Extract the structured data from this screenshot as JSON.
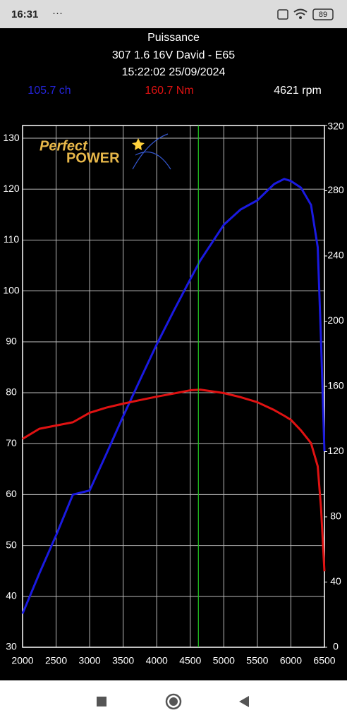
{
  "status_bar": {
    "time": "16:31",
    "dots": "···",
    "battery": "89"
  },
  "chart_data": {
    "type": "line",
    "title": "Puissance",
    "subtitle": "307 1.6 16V David - E65",
    "timestamp": "15:22:02 25/09/2024",
    "readouts": [
      "105.7 ch",
      "160.7 Nm",
      "4621 rpm"
    ],
    "logo": [
      "Perfect",
      "POWER"
    ],
    "x": [
      2000,
      2250,
      2500,
      2750,
      3000,
      3250,
      3500,
      3750,
      4000,
      4250,
      4500,
      4650,
      5000,
      5250,
      5500,
      5750,
      5900,
      6000,
      6150,
      6300,
      6400,
      6450,
      6500
    ],
    "series": [
      {
        "name": "ch",
        "color": "#1a1ae0",
        "values": [
          36.6,
          44.5,
          52,
          60,
          60.8,
          68,
          75.4,
          82.5,
          89.5,
          96,
          102.3,
          106,
          113,
          116,
          117.8,
          121,
          122,
          121.6,
          120.3,
          116.9,
          108.6,
          90,
          68.5
        ]
      },
      {
        "name": "Nm",
        "color": "#e01212",
        "axis": "y2",
        "values": [
          127.8,
          134,
          136,
          138,
          143.8,
          147,
          149.4,
          151.6,
          153.7,
          155.6,
          157.6,
          158,
          155.9,
          153.4,
          150.3,
          145.5,
          142,
          139.5,
          133,
          125.2,
          111,
          85,
          46.6
        ]
      }
    ],
    "cursor_x": 4621,
    "cursor_color": "#22cc22",
    "xlim": [
      2000,
      6500
    ],
    "xticks": [
      2000,
      2500,
      3000,
      3500,
      4000,
      4500,
      5000,
      5500,
      6000,
      6500
    ],
    "ylim": [
      30,
      132.5
    ],
    "yticks": [
      30,
      40,
      50,
      60,
      70,
      80,
      90,
      100,
      110,
      120,
      130
    ],
    "y2lim": [
      0,
      320
    ],
    "y2ticks": [
      0,
      40,
      80,
      120,
      160,
      200,
      240,
      280,
      320
    ],
    "grid": true
  }
}
